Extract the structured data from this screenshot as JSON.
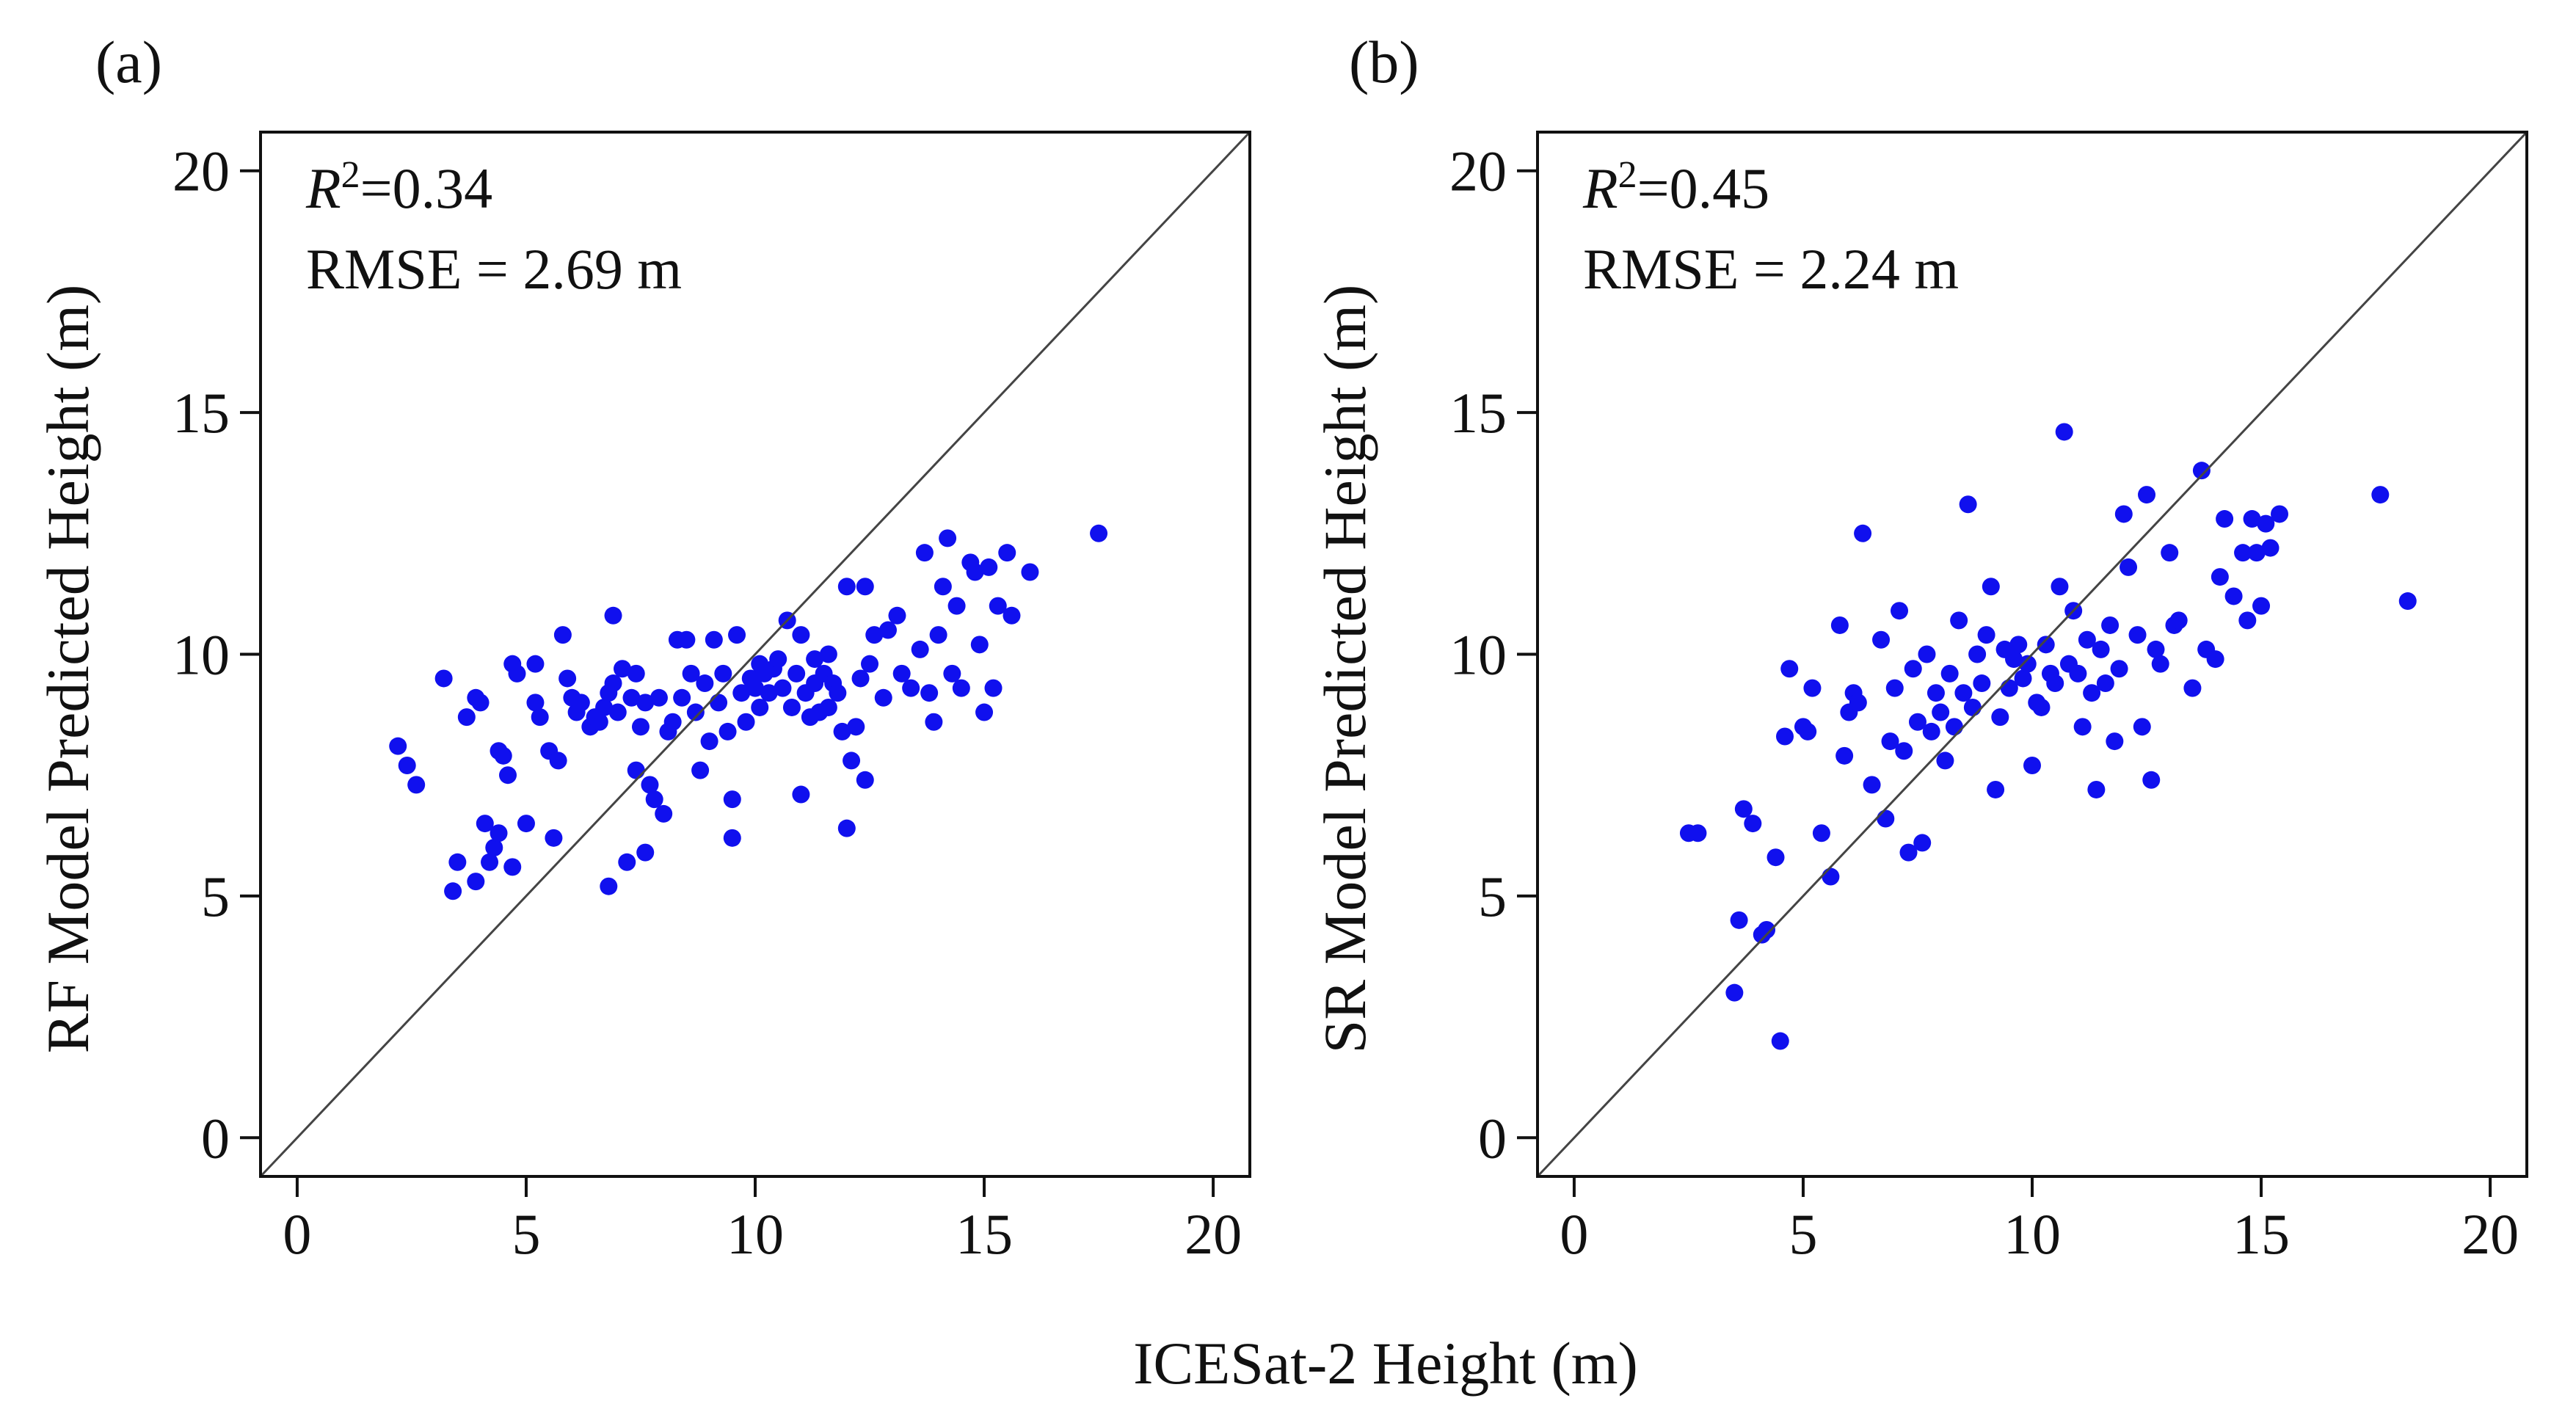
{
  "figure": {
    "shared_xlabel": "ICESat-2 Height (m)"
  },
  "colors": {
    "points": "#1010ee",
    "axes": "#111111",
    "identity_line": "#444444"
  },
  "chart_data": [
    {
      "panel_label": "(a)",
      "type": "scatter",
      "ylabel": "RF Model Predicted Height (m)",
      "xlabel": "ICESat-2 Height (m)",
      "stats": {
        "r2_symbol": "R",
        "r2_sup": "2",
        "r2_value": "=0.34",
        "rmse": "RMSE = 2.69 m"
      },
      "xlim": [
        -0.8,
        20.8
      ],
      "ylim": [
        -0.8,
        20.8
      ],
      "xticks": [
        0,
        5,
        10,
        15,
        20
      ],
      "yticks": [
        0,
        5,
        10,
        15,
        20
      ],
      "identity_line": true,
      "points": [
        [
          2.2,
          8.1
        ],
        [
          2.4,
          7.7
        ],
        [
          2.6,
          7.3
        ],
        [
          3.2,
          9.5
        ],
        [
          3.4,
          5.1
        ],
        [
          3.5,
          5.7
        ],
        [
          3.7,
          8.7
        ],
        [
          3.9,
          9.1
        ],
        [
          3.9,
          5.3
        ],
        [
          4.0,
          9.0
        ],
        [
          4.1,
          6.5
        ],
        [
          4.2,
          5.7
        ],
        [
          4.3,
          6.0
        ],
        [
          4.4,
          6.3
        ],
        [
          4.4,
          8.0
        ],
        [
          4.5,
          7.9
        ],
        [
          4.6,
          7.5
        ],
        [
          4.7,
          9.8
        ],
        [
          4.7,
          5.6
        ],
        [
          4.8,
          9.6
        ],
        [
          5.0,
          6.5
        ],
        [
          5.2,
          9.8
        ],
        [
          5.2,
          9.0
        ],
        [
          5.3,
          8.7
        ],
        [
          5.5,
          8.0
        ],
        [
          5.6,
          6.2
        ],
        [
          5.7,
          7.8
        ],
        [
          5.8,
          10.4
        ],
        [
          5.9,
          9.5
        ],
        [
          6.0,
          9.1
        ],
        [
          6.1,
          8.8
        ],
        [
          6.2,
          9.0
        ],
        [
          6.4,
          8.5
        ],
        [
          6.5,
          8.7
        ],
        [
          6.6,
          8.6
        ],
        [
          6.7,
          8.9
        ],
        [
          6.8,
          9.2
        ],
        [
          6.8,
          5.2
        ],
        [
          6.9,
          9.4
        ],
        [
          6.9,
          10.8
        ],
        [
          7.0,
          8.8
        ],
        [
          7.1,
          9.7
        ],
        [
          7.2,
          5.7
        ],
        [
          7.3,
          9.1
        ],
        [
          7.4,
          9.6
        ],
        [
          7.4,
          7.6
        ],
        [
          7.5,
          8.5
        ],
        [
          7.6,
          9.0
        ],
        [
          7.6,
          5.9
        ],
        [
          7.7,
          7.3
        ],
        [
          7.8,
          7.0
        ],
        [
          7.9,
          9.1
        ],
        [
          8.0,
          6.7
        ],
        [
          8.1,
          8.4
        ],
        [
          8.2,
          8.6
        ],
        [
          8.3,
          10.3
        ],
        [
          8.4,
          9.1
        ],
        [
          8.5,
          10.3
        ],
        [
          8.6,
          9.6
        ],
        [
          8.7,
          8.8
        ],
        [
          8.8,
          7.6
        ],
        [
          8.9,
          9.4
        ],
        [
          9.0,
          8.2
        ],
        [
          9.1,
          10.3
        ],
        [
          9.2,
          9.0
        ],
        [
          9.3,
          9.6
        ],
        [
          9.4,
          8.4
        ],
        [
          9.5,
          6.2
        ],
        [
          9.5,
          7.0
        ],
        [
          9.6,
          10.4
        ],
        [
          9.7,
          9.2
        ],
        [
          9.8,
          8.6
        ],
        [
          9.9,
          9.5
        ],
        [
          10.0,
          9.3
        ],
        [
          10.1,
          9.8
        ],
        [
          10.1,
          8.9
        ],
        [
          10.2,
          9.6
        ],
        [
          10.3,
          9.2
        ],
        [
          10.4,
          9.7
        ],
        [
          10.5,
          9.9
        ],
        [
          10.6,
          9.3
        ],
        [
          10.7,
          10.7
        ],
        [
          10.8,
          8.9
        ],
        [
          10.9,
          9.6
        ],
        [
          11.0,
          10.4
        ],
        [
          11.0,
          7.1
        ],
        [
          11.1,
          9.2
        ],
        [
          11.2,
          8.7
        ],
        [
          11.3,
          9.9
        ],
        [
          11.3,
          9.4
        ],
        [
          11.4,
          8.8
        ],
        [
          11.5,
          9.6
        ],
        [
          11.6,
          10.0
        ],
        [
          11.6,
          8.9
        ],
        [
          11.7,
          9.4
        ],
        [
          11.8,
          9.2
        ],
        [
          11.9,
          8.4
        ],
        [
          12.0,
          11.4
        ],
        [
          12.0,
          6.4
        ],
        [
          12.1,
          7.8
        ],
        [
          12.2,
          8.5
        ],
        [
          12.3,
          9.5
        ],
        [
          12.4,
          11.4
        ],
        [
          12.4,
          7.4
        ],
        [
          12.5,
          9.8
        ],
        [
          12.6,
          10.4
        ],
        [
          12.8,
          9.1
        ],
        [
          12.9,
          10.5
        ],
        [
          13.1,
          10.8
        ],
        [
          13.2,
          9.6
        ],
        [
          13.4,
          9.3
        ],
        [
          13.6,
          10.1
        ],
        [
          13.7,
          12.1
        ],
        [
          13.8,
          9.2
        ],
        [
          13.9,
          8.6
        ],
        [
          14.0,
          10.4
        ],
        [
          14.1,
          11.4
        ],
        [
          14.2,
          12.4
        ],
        [
          14.3,
          9.6
        ],
        [
          14.4,
          11.0
        ],
        [
          14.5,
          9.3
        ],
        [
          14.7,
          11.9
        ],
        [
          14.8,
          11.7
        ],
        [
          14.9,
          10.2
        ],
        [
          15.0,
          8.8
        ],
        [
          15.1,
          11.8
        ],
        [
          15.2,
          9.3
        ],
        [
          15.3,
          11.0
        ],
        [
          15.5,
          12.1
        ],
        [
          15.6,
          10.8
        ],
        [
          16.0,
          11.7
        ],
        [
          17.5,
          12.5
        ]
      ]
    },
    {
      "panel_label": "(b)",
      "type": "scatter",
      "ylabel": "SR Model Predicted Height (m)",
      "xlabel": "ICESat-2 Height (m)",
      "stats": {
        "r2_symbol": "R",
        "r2_sup": "2",
        "r2_value": "=0.45",
        "rmse": "RMSE = 2.24 m"
      },
      "xlim": [
        -0.8,
        20.8
      ],
      "ylim": [
        -0.8,
        20.8
      ],
      "xticks": [
        0,
        5,
        10,
        15,
        20
      ],
      "yticks": [
        0,
        5,
        10,
        15,
        20
      ],
      "identity_line": true,
      "points": [
        [
          2.5,
          6.3
        ],
        [
          2.7,
          6.3
        ],
        [
          3.5,
          3.0
        ],
        [
          3.6,
          4.5
        ],
        [
          3.7,
          6.8
        ],
        [
          3.9,
          6.5
        ],
        [
          4.1,
          4.2
        ],
        [
          4.2,
          4.3
        ],
        [
          4.4,
          5.8
        ],
        [
          4.5,
          2.0
        ],
        [
          4.6,
          8.3
        ],
        [
          4.7,
          9.7
        ],
        [
          5.0,
          8.5
        ],
        [
          5.1,
          8.4
        ],
        [
          5.2,
          9.3
        ],
        [
          5.4,
          6.3
        ],
        [
          5.6,
          5.4
        ],
        [
          5.8,
          10.6
        ],
        [
          5.9,
          7.9
        ],
        [
          6.0,
          8.8
        ],
        [
          6.1,
          9.2
        ],
        [
          6.2,
          9.0
        ],
        [
          6.3,
          12.5
        ],
        [
          6.5,
          7.3
        ],
        [
          6.7,
          10.3
        ],
        [
          6.8,
          6.6
        ],
        [
          6.9,
          8.2
        ],
        [
          7.0,
          9.3
        ],
        [
          7.1,
          10.9
        ],
        [
          7.2,
          8.0
        ],
        [
          7.3,
          5.9
        ],
        [
          7.4,
          9.7
        ],
        [
          7.5,
          8.6
        ],
        [
          7.6,
          6.1
        ],
        [
          7.7,
          10.0
        ],
        [
          7.8,
          8.4
        ],
        [
          7.9,
          9.2
        ],
        [
          8.0,
          8.8
        ],
        [
          8.1,
          7.8
        ],
        [
          8.2,
          9.6
        ],
        [
          8.3,
          8.5
        ],
        [
          8.4,
          10.7
        ],
        [
          8.5,
          9.2
        ],
        [
          8.6,
          13.1
        ],
        [
          8.7,
          8.9
        ],
        [
          8.8,
          10.0
        ],
        [
          8.9,
          9.4
        ],
        [
          9.0,
          10.4
        ],
        [
          9.1,
          11.4
        ],
        [
          9.2,
          7.2
        ],
        [
          9.3,
          8.7
        ],
        [
          9.4,
          10.1
        ],
        [
          9.5,
          9.3
        ],
        [
          9.6,
          9.9
        ],
        [
          9.7,
          10.2
        ],
        [
          9.8,
          9.5
        ],
        [
          9.9,
          9.8
        ],
        [
          10.0,
          7.7
        ],
        [
          10.1,
          9.0
        ],
        [
          10.2,
          8.9
        ],
        [
          10.3,
          10.2
        ],
        [
          10.4,
          9.6
        ],
        [
          10.5,
          9.4
        ],
        [
          10.6,
          11.4
        ],
        [
          10.7,
          14.6
        ],
        [
          10.8,
          9.8
        ],
        [
          10.9,
          10.9
        ],
        [
          11.0,
          9.6
        ],
        [
          11.1,
          8.5
        ],
        [
          11.2,
          10.3
        ],
        [
          11.3,
          9.2
        ],
        [
          11.4,
          7.2
        ],
        [
          11.5,
          10.1
        ],
        [
          11.6,
          9.4
        ],
        [
          11.7,
          10.6
        ],
        [
          11.8,
          8.2
        ],
        [
          11.9,
          9.7
        ],
        [
          12.0,
          12.9
        ],
        [
          12.1,
          11.8
        ],
        [
          12.3,
          10.4
        ],
        [
          12.4,
          8.5
        ],
        [
          12.5,
          13.3
        ],
        [
          12.6,
          7.4
        ],
        [
          12.7,
          10.1
        ],
        [
          12.8,
          9.8
        ],
        [
          13.0,
          12.1
        ],
        [
          13.1,
          10.6
        ],
        [
          13.2,
          10.7
        ],
        [
          13.5,
          9.3
        ],
        [
          13.7,
          13.8
        ],
        [
          13.8,
          10.1
        ],
        [
          14.0,
          9.9
        ],
        [
          14.1,
          11.6
        ],
        [
          14.2,
          12.8
        ],
        [
          14.4,
          11.2
        ],
        [
          14.6,
          12.1
        ],
        [
          14.7,
          10.7
        ],
        [
          14.8,
          12.8
        ],
        [
          14.9,
          12.1
        ],
        [
          15.0,
          11.0
        ],
        [
          15.1,
          12.7
        ],
        [
          15.2,
          12.2
        ],
        [
          15.4,
          12.9
        ],
        [
          17.6,
          13.3
        ],
        [
          18.2,
          11.1
        ]
      ]
    }
  ]
}
